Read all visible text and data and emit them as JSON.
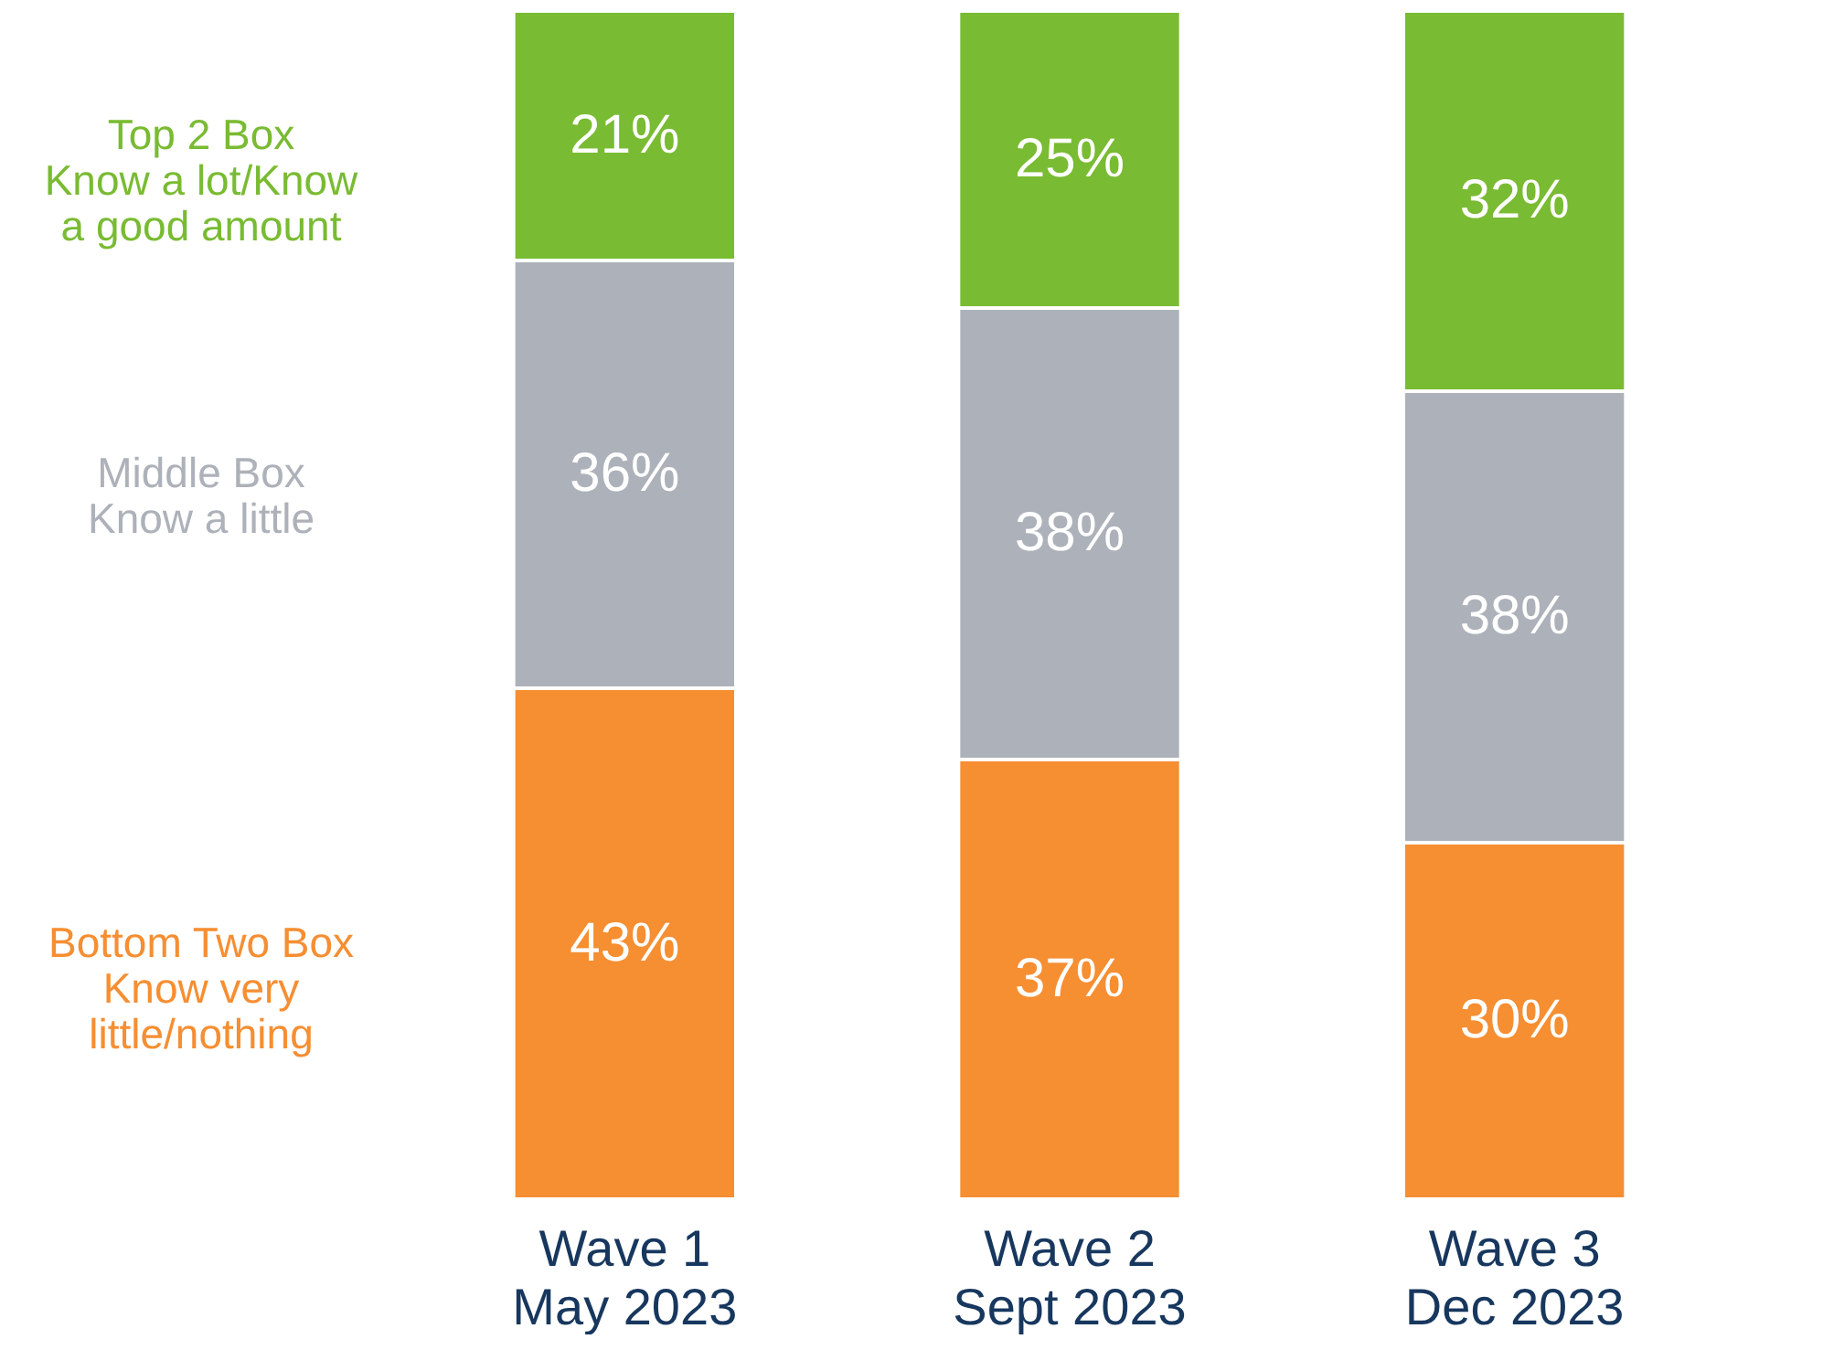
{
  "chart_data": {
    "type": "bar",
    "stacked": true,
    "legend": "left",
    "categories": [
      "Wave 1\nMay 2023",
      "Wave 2\nSept 2023",
      "Wave 3\nDec 2023"
    ],
    "series": [
      {
        "name": "Bottom Two Box\nKnow very\nlittle/nothing",
        "color": "#f68e32",
        "values": [
          43,
          37,
          30
        ],
        "value_labels": [
          "43%",
          "37%",
          "30%"
        ]
      },
      {
        "name": "Middle Box\nKnow a little",
        "color": "#adb1b9",
        "values": [
          36,
          38,
          38
        ],
        "value_labels": [
          "36%",
          "38%",
          "38%"
        ]
      },
      {
        "name": "Top 2 Box\nKnow a lot/Know\na good amount",
        "color": "#79bb32",
        "values": [
          21,
          25,
          32
        ],
        "value_labels": [
          "21%",
          "25%",
          "32%"
        ]
      }
    ]
  }
}
